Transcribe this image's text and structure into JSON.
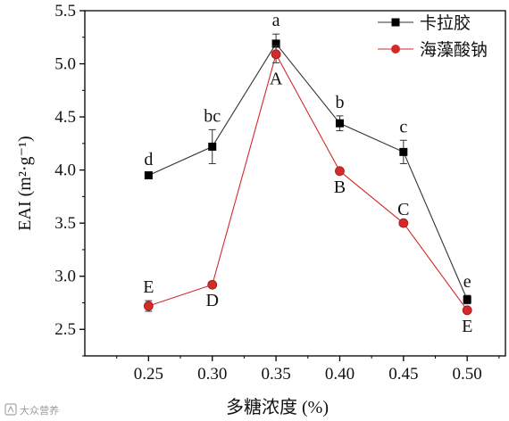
{
  "chart_data": {
    "type": "line",
    "xlabel": "多糖浓度 (%)",
    "ylabel": "EAI (m²·g⁻¹)",
    "x": [
      0.25,
      0.3,
      0.35,
      0.4,
      0.45,
      0.5
    ],
    "x_tick_labels": [
      "0.25",
      "0.30",
      "0.35",
      "0.40",
      "0.45",
      "0.50"
    ],
    "xlim": [
      0.2,
      0.53
    ],
    "ylim": [
      2.25,
      5.5
    ],
    "y_ticks": [
      2.5,
      3.0,
      3.5,
      4.0,
      4.5,
      5.0,
      5.5
    ],
    "y_tick_labels": [
      "2.5",
      "3.0",
      "3.5",
      "4.0",
      "4.5",
      "5.0",
      "5.5"
    ],
    "grid": false,
    "legend_position": "top-right",
    "series": [
      {
        "name": "卡拉胶",
        "color": "#000000",
        "marker": "square",
        "values": [
          3.95,
          4.22,
          5.19,
          4.44,
          4.17,
          2.78
        ],
        "errors": [
          0.02,
          0.16,
          0.09,
          0.07,
          0.11,
          0.04
        ],
        "labels": [
          "d",
          "bc",
          "a",
          "b",
          "c",
          "e"
        ],
        "label_positions": [
          "above",
          "above",
          "above",
          "above",
          "above",
          "above"
        ]
      },
      {
        "name": "海藻酸钠",
        "color": "#d32a2a",
        "marker": "circle",
        "values": [
          2.72,
          2.92,
          5.09,
          3.99,
          3.5,
          2.68
        ],
        "errors": [
          0.05,
          0.0,
          0.08,
          0.0,
          0.0,
          0.0
        ],
        "labels": [
          "E",
          "D",
          "A",
          "B",
          "C",
          "E"
        ],
        "label_positions": [
          "above",
          "below",
          "below",
          "below",
          "above",
          "below"
        ]
      }
    ]
  },
  "watermark": "大众营养"
}
